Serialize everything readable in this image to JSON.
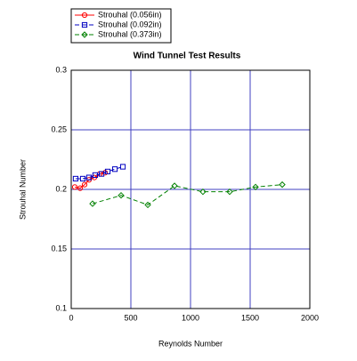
{
  "chart_data": {
    "type": "line",
    "title": "Wind Tunnel Test Results",
    "xlabel": "Reynolds Number",
    "ylabel": "Strouhal Number",
    "xlim": [
      0,
      2000
    ],
    "xticks": [
      0,
      500,
      1000,
      1500,
      2000
    ],
    "ylim": [
      0.1,
      0.3
    ],
    "yticks": [
      0.1,
      0.15,
      0.2,
      0.25,
      0.3
    ],
    "grid": true,
    "legend": "outside-top-left",
    "series": [
      {
        "name": "Strouhal (0.056in)",
        "color": "#ff0000",
        "marker": "circle",
        "dash": "solid",
        "x": [
          30,
          75,
          112,
          149,
          194,
          239,
          284
        ],
        "values": [
          0.202,
          0.201,
          0.204,
          0.208,
          0.21,
          0.213,
          0.214
        ]
      },
      {
        "name": "Strouhal (0.092in)",
        "color": "#0000c0",
        "marker": "square",
        "dash": "dashed",
        "x": [
          37,
          97,
          149,
          201,
          254,
          306,
          366,
          433
        ],
        "values": [
          0.209,
          0.209,
          0.21,
          0.212,
          0.213,
          0.215,
          0.217,
          0.219
        ]
      },
      {
        "name": "Strouhal (0.373in)",
        "color": "#008000",
        "marker": "diamond",
        "dash": "dashed",
        "x": [
          179,
          418,
          642,
          866,
          1104,
          1328,
          1545,
          1769
        ],
        "values": [
          0.188,
          0.195,
          0.187,
          0.203,
          0.198,
          0.198,
          0.202,
          0.204
        ]
      }
    ]
  }
}
